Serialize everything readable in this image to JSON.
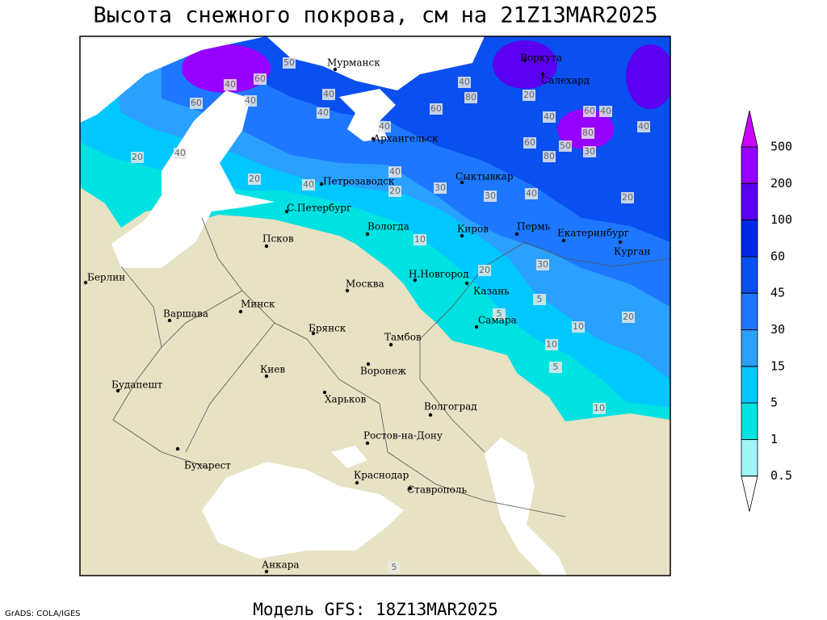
{
  "title": "Высота снежного покрова, см на 21Z13MAR2025",
  "cities": [
    "Мурманск",
    "Воркута",
    "Салехард",
    "Архангельск",
    "Петрозаводск",
    "Сыктывкар",
    "С.Петербург",
    "Вологда",
    "Киров",
    "Пермь",
    "Екатеринбург",
    "Курган",
    "Псков",
    "Берлин",
    "Н.Новгород",
    "Москва",
    "Казань",
    "Минск",
    "Варшава",
    "Самара",
    "Брянск",
    "Тамбов",
    "Киев",
    "Воронеж",
    "Будапешт",
    "Харьков",
    "Волгоград",
    "Ростов-на-Дону",
    "Бухарест",
    "Краснодар",
    "Ставрополь",
    "Анкара"
  ],
  "contour_labels": [
    "50",
    "60",
    "40",
    "60",
    "40",
    "40",
    "40",
    "40",
    "80",
    "40",
    "60",
    "20",
    "40",
    "60",
    "40",
    "80",
    "40",
    "60",
    "80",
    "50",
    "30",
    "20",
    "40",
    "20",
    "40",
    "40",
    "20",
    "30",
    "30",
    "40",
    "20",
    "10",
    "30",
    "20",
    "5",
    "5",
    "20",
    "10",
    "10",
    "5",
    "10",
    "5"
  ],
  "colorbar": {
    "levels": [
      0.5,
      1,
      5,
      15,
      30,
      45,
      60,
      100,
      200,
      500
    ],
    "colors": [
      "#ffffff",
      "#a0f5f5",
      "#00e1e1",
      "#00c8ff",
      "#2aa0ff",
      "#1e78ff",
      "#0a50f0",
      "#0028e6",
      "#5a00f0",
      "#9600ff",
      "#cc00ff"
    ]
  },
  "footer": "Модель GFS: 18Z13MAR2025",
  "credit": "GrADS: COLA/IGES"
}
